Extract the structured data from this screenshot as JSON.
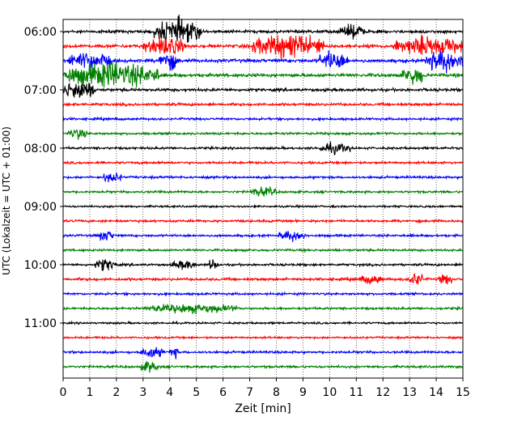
{
  "chart_data": {
    "type": "line",
    "title": "",
    "xlabel": "Zeit  [min]",
    "ylabel": "UTC (Lokalzeit = UTC + 01:00)",
    "xlim": [
      0,
      15
    ],
    "x_ticks": [
      "0",
      "1",
      "2",
      "3",
      "4",
      "5",
      "6",
      "7",
      "8",
      "9",
      "10",
      "11",
      "12",
      "13",
      "14",
      "15"
    ],
    "y_ticks": [
      "06:00",
      "07:00",
      "08:00",
      "09:00",
      "10:00",
      "11:00"
    ],
    "y_tick_rows": [
      0,
      4,
      8,
      12,
      16,
      20
    ],
    "grid": "vertical dotted lines at each minute",
    "trace_colors": [
      "#000000",
      "#ff0000",
      "#0000ff",
      "#008000"
    ],
    "row_duration_min": 15,
    "traces": [
      {
        "start": "06:00",
        "color": "#000000",
        "level": 0.9,
        "bursts": [
          [
            3.4,
            5.2,
            2.8
          ],
          [
            10.4,
            11.3,
            1.6
          ]
        ]
      },
      {
        "start": "06:15",
        "color": "#ff0000",
        "level": 1.0,
        "bursts": [
          [
            3.0,
            4.6,
            2.0
          ],
          [
            7.1,
            9.8,
            2.8
          ],
          [
            12.4,
            15.0,
            2.2
          ]
        ]
      },
      {
        "start": "06:30",
        "color": "#0000ff",
        "level": 1.0,
        "bursts": [
          [
            0.2,
            1.8,
            2.0
          ],
          [
            3.6,
            4.3,
            2.4
          ],
          [
            9.6,
            10.7,
            2.2
          ],
          [
            13.6,
            15.0,
            2.6
          ]
        ]
      },
      {
        "start": "06:45",
        "color": "#008000",
        "level": 1.0,
        "bursts": [
          [
            0.0,
            3.6,
            3.0
          ],
          [
            12.7,
            13.6,
            2.2
          ]
        ]
      },
      {
        "start": "07:00",
        "color": "#000000",
        "level": 0.9,
        "bursts": [
          [
            0.0,
            1.2,
            2.4
          ]
        ]
      },
      {
        "start": "07:15",
        "color": "#ff0000",
        "level": 0.8,
        "bursts": []
      },
      {
        "start": "07:30",
        "color": "#0000ff",
        "level": 0.7,
        "bursts": []
      },
      {
        "start": "07:45",
        "color": "#008000",
        "level": 0.7,
        "bursts": [
          [
            0.2,
            0.9,
            1.2
          ]
        ]
      },
      {
        "start": "08:00",
        "color": "#000000",
        "level": 0.7,
        "bursts": [
          [
            9.6,
            10.8,
            1.1
          ]
        ]
      },
      {
        "start": "08:15",
        "color": "#ff0000",
        "level": 0.7,
        "bursts": []
      },
      {
        "start": "08:30",
        "color": "#0000ff",
        "level": 0.7,
        "bursts": [
          [
            1.5,
            2.2,
            1.1
          ]
        ]
      },
      {
        "start": "08:45",
        "color": "#008000",
        "level": 0.7,
        "bursts": [
          [
            7.0,
            8.0,
            1.0
          ]
        ]
      },
      {
        "start": "09:00",
        "color": "#000000",
        "level": 0.6,
        "bursts": []
      },
      {
        "start": "09:15",
        "color": "#ff0000",
        "level": 0.7,
        "bursts": []
      },
      {
        "start": "09:30",
        "color": "#0000ff",
        "level": 0.7,
        "bursts": [
          [
            1.3,
            1.9,
            1.2
          ],
          [
            8.1,
            9.1,
            1.2
          ]
        ]
      },
      {
        "start": "09:45",
        "color": "#008000",
        "level": 0.7,
        "bursts": []
      },
      {
        "start": "10:00",
        "color": "#000000",
        "level": 0.7,
        "bursts": [
          [
            1.2,
            2.0,
            1.4
          ],
          [
            4.1,
            5.0,
            1.0
          ],
          [
            5.5,
            5.8,
            1.8
          ]
        ]
      },
      {
        "start": "10:15",
        "color": "#ff0000",
        "level": 0.8,
        "bursts": [
          [
            11.1,
            12.0,
            1.0
          ],
          [
            13.0,
            13.5,
            1.6
          ],
          [
            14.1,
            14.6,
            1.2
          ]
        ]
      },
      {
        "start": "10:30",
        "color": "#0000ff",
        "level": 0.7,
        "bursts": []
      },
      {
        "start": "10:45",
        "color": "#008000",
        "level": 0.7,
        "bursts": [
          [
            3.1,
            6.5,
            1.0
          ]
        ]
      },
      {
        "start": "11:00",
        "color": "#000000",
        "level": 0.6,
        "bursts": []
      },
      {
        "start": "11:15",
        "color": "#ff0000",
        "level": 0.6,
        "bursts": []
      },
      {
        "start": "11:30",
        "color": "#0000ff",
        "level": 0.7,
        "bursts": [
          [
            2.9,
            3.8,
            1.2
          ],
          [
            4.0,
            4.3,
            1.5
          ]
        ]
      },
      {
        "start": "11:45",
        "color": "#008000",
        "level": 0.7,
        "bursts": [
          [
            2.9,
            3.6,
            1.2
          ]
        ]
      }
    ]
  }
}
